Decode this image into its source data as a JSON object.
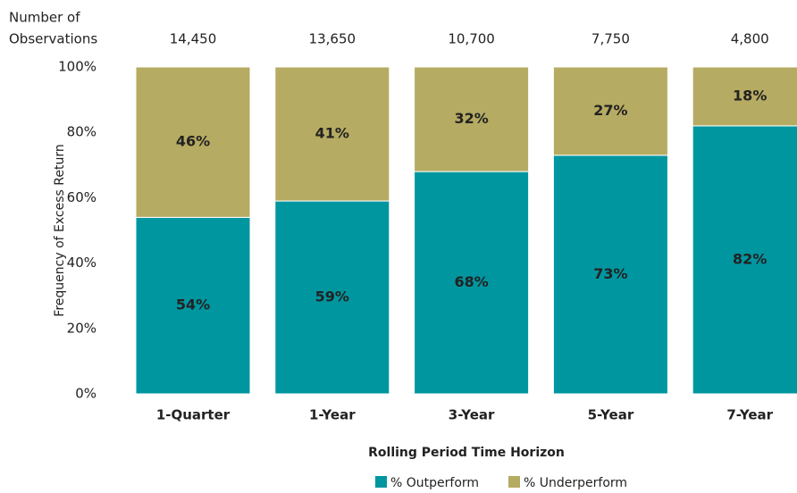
{
  "chart_data": {
    "type": "stacked_bar",
    "observations_title": [
      "Number of",
      "Observations"
    ],
    "observations": [
      14450,
      13650,
      10700,
      7750,
      4800
    ],
    "observation_labels": [
      "14,450",
      "13,650",
      "10,700",
      "7,750",
      "4,800"
    ],
    "categories": [
      "1-Quarter",
      "1-Year",
      "3-Year",
      "5-Year",
      "7-Year"
    ],
    "series": [
      {
        "name": "% Outperform",
        "color": "#0096a0",
        "values": [
          54,
          59,
          68,
          73,
          82
        ],
        "value_labels": [
          "54%",
          "59%",
          "68%",
          "73%",
          "82%"
        ]
      },
      {
        "name": "% Underperform",
        "color": "#b6ab62",
        "values": [
          46,
          41,
          32,
          27,
          18
        ],
        "value_labels": [
          "46%",
          "41%",
          "32%",
          "27%",
          "18%"
        ]
      }
    ],
    "ylim": [
      0,
      100
    ],
    "yticks": [
      {
        "value": 0,
        "label": "0%"
      },
      {
        "value": 20,
        "label": "20%"
      },
      {
        "value": 40,
        "label": "40%"
      },
      {
        "value": 60,
        "label": "60%"
      },
      {
        "value": 80,
        "label": "80%"
      },
      {
        "value": 100,
        "label": "100%"
      }
    ],
    "y_label": "Frequency of Excess Return",
    "x_label": "Rolling Period Time Horizon",
    "legend": "bottom",
    "grid": false
  }
}
